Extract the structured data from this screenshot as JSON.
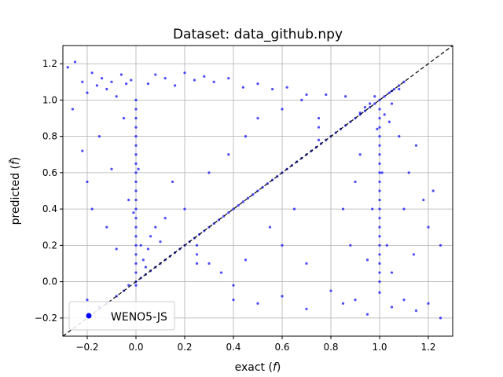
{
  "chart_data": {
    "type": "scatter",
    "title": "Dataset: data_github.npy",
    "xlabel": "exact (",
    "xlabel_symbol": "f",
    "xlabel_close": ")",
    "ylabel": "predicted (",
    "ylabel_symbol": "f̂",
    "ylabel_close": ")",
    "xlim": [
      -0.3,
      1.3
    ],
    "ylim": [
      -0.3,
      1.3
    ],
    "xticks": [
      -0.2,
      0.0,
      0.2,
      0.4,
      0.6,
      0.8,
      1.0,
      1.2
    ],
    "yticks": [
      -0.2,
      0.0,
      0.2,
      0.4,
      0.6,
      0.8,
      1.0,
      1.2
    ],
    "xtick_labels": [
      "−0.2",
      "0.0",
      "0.2",
      "0.4",
      "0.6",
      "0.8",
      "1.0",
      "1.2"
    ],
    "ytick_labels": [
      "−0.2",
      "0.0",
      "0.2",
      "0.4",
      "0.6",
      "0.8",
      "1.0",
      "1.2"
    ],
    "grid": true,
    "legend_position": "lower-left",
    "reference_line": {
      "style": "dashed",
      "color": "#000000",
      "slope": 1,
      "intercept": 0
    },
    "series": [
      {
        "name": "WENO5-JS",
        "color": "#0000ff",
        "marker": "dot",
        "points": [
          [
            -0.28,
            1.18
          ],
          [
            -0.25,
            1.21
          ],
          [
            -0.22,
            1.1
          ],
          [
            -0.2,
            1.04
          ],
          [
            -0.18,
            1.15
          ],
          [
            -0.16,
            1.08
          ],
          [
            -0.14,
            1.12
          ],
          [
            -0.12,
            1.06
          ],
          [
            -0.1,
            1.1
          ],
          [
            -0.08,
            1.02
          ],
          [
            -0.06,
            1.14
          ],
          [
            -0.04,
            1.09
          ],
          [
            -0.02,
            1.11
          ],
          [
            0.05,
            1.09
          ],
          [
            0.08,
            1.14
          ],
          [
            0.12,
            1.12
          ],
          [
            0.16,
            1.08
          ],
          [
            0.2,
            1.15
          ],
          [
            0.24,
            1.11
          ],
          [
            0.28,
            1.13
          ],
          [
            0.32,
            1.1
          ],
          [
            0.38,
            1.12
          ],
          [
            0.44,
            1.07
          ],
          [
            0.5,
            1.09
          ],
          [
            0.56,
            1.06
          ],
          [
            0.62,
            1.07
          ],
          [
            0.7,
            1.03
          ],
          [
            0.78,
            1.03
          ],
          [
            0.86,
            1.02
          ],
          [
            -0.26,
            0.95
          ],
          [
            -0.22,
            0.72
          ],
          [
            -0.2,
            0.55
          ],
          [
            -0.18,
            0.4
          ],
          [
            -0.15,
            0.8
          ],
          [
            -0.12,
            0.3
          ],
          [
            -0.1,
            0.62
          ],
          [
            -0.08,
            0.18
          ],
          [
            -0.05,
            0.9
          ],
          [
            -0.03,
            0.45
          ],
          [
            0.0,
            1.0
          ],
          [
            0.0,
            0.95
          ],
          [
            0.0,
            0.9
          ],
          [
            0.0,
            0.85
          ],
          [
            0.0,
            0.8
          ],
          [
            0.0,
            0.75
          ],
          [
            0.0,
            0.7
          ],
          [
            0.0,
            0.65
          ],
          [
            0.0,
            0.6
          ],
          [
            0.0,
            0.55
          ],
          [
            0.0,
            0.5
          ],
          [
            0.0,
            0.45
          ],
          [
            0.0,
            0.4
          ],
          [
            0.0,
            0.35
          ],
          [
            0.0,
            0.3
          ],
          [
            0.0,
            0.25
          ],
          [
            0.0,
            0.2
          ],
          [
            0.0,
            0.15
          ],
          [
            0.0,
            0.1
          ],
          [
            0.0,
            0.05
          ],
          [
            0.0,
            0.0
          ],
          [
            0.01,
            0.62
          ],
          [
            -0.01,
            0.38
          ],
          [
            0.02,
            0.2
          ],
          [
            0.03,
            0.12
          ],
          [
            0.04,
            0.08
          ],
          [
            0.05,
            0.18
          ],
          [
            0.06,
            0.25
          ],
          [
            0.08,
            0.3
          ],
          [
            0.1,
            0.22
          ],
          [
            0.12,
            0.35
          ],
          [
            -0.2,
            -0.1
          ],
          [
            -0.15,
            -0.14
          ],
          [
            -0.12,
            -0.12
          ],
          [
            -0.1,
            -0.18
          ],
          [
            -0.08,
            -0.08
          ],
          [
            -0.05,
            -0.05
          ],
          [
            -0.03,
            -0.02
          ],
          [
            0.0,
            -0.02
          ],
          [
            0.02,
            0.02
          ],
          [
            0.04,
            0.04
          ],
          [
            0.06,
            0.06
          ],
          [
            0.08,
            0.08
          ],
          [
            0.1,
            0.1
          ],
          [
            0.12,
            0.12
          ],
          [
            0.14,
            0.14
          ],
          [
            0.16,
            0.16
          ],
          [
            0.18,
            0.18
          ],
          [
            0.2,
            0.2
          ],
          [
            0.22,
            0.22
          ],
          [
            0.24,
            0.24
          ],
          [
            0.26,
            0.26
          ],
          [
            0.28,
            0.28
          ],
          [
            0.3,
            0.3
          ],
          [
            0.32,
            0.32
          ],
          [
            0.34,
            0.34
          ],
          [
            0.36,
            0.36
          ],
          [
            0.38,
            0.38
          ],
          [
            0.4,
            0.4
          ],
          [
            0.42,
            0.42
          ],
          [
            0.44,
            0.44
          ],
          [
            0.46,
            0.46
          ],
          [
            0.48,
            0.48
          ],
          [
            0.5,
            0.5
          ],
          [
            0.52,
            0.52
          ],
          [
            0.54,
            0.54
          ],
          [
            0.56,
            0.56
          ],
          [
            0.58,
            0.58
          ],
          [
            0.6,
            0.6
          ],
          [
            0.62,
            0.62
          ],
          [
            0.64,
            0.64
          ],
          [
            0.66,
            0.66
          ],
          [
            0.68,
            0.68
          ],
          [
            0.7,
            0.7
          ],
          [
            0.72,
            0.72
          ],
          [
            0.74,
            0.74
          ],
          [
            0.76,
            0.76
          ],
          [
            0.78,
            0.78
          ],
          [
            0.8,
            0.8
          ],
          [
            0.82,
            0.82
          ],
          [
            0.84,
            0.84
          ],
          [
            0.86,
            0.86
          ],
          [
            0.88,
            0.88
          ],
          [
            0.9,
            0.9
          ],
          [
            0.92,
            0.92
          ],
          [
            0.94,
            0.94
          ],
          [
            0.96,
            0.96
          ],
          [
            0.98,
            0.98
          ],
          [
            1.0,
            1.0
          ],
          [
            1.02,
            1.02
          ],
          [
            1.04,
            1.04
          ],
          [
            1.06,
            1.06
          ],
          [
            1.08,
            1.08
          ],
          [
            1.1,
            1.1
          ],
          [
            0.25,
            0.15
          ],
          [
            0.25,
            0.2
          ],
          [
            0.25,
            0.1
          ],
          [
            0.75,
            0.78
          ],
          [
            0.75,
            0.85
          ],
          [
            0.75,
            0.9
          ],
          [
            0.3,
            0.1
          ],
          [
            0.35,
            0.05
          ],
          [
            0.4,
            -0.02
          ],
          [
            0.45,
            0.12
          ],
          [
            0.2,
            0.4
          ],
          [
            0.15,
            0.55
          ],
          [
            0.3,
            0.6
          ],
          [
            0.38,
            0.7
          ],
          [
            0.45,
            0.8
          ],
          [
            0.55,
            0.3
          ],
          [
            0.6,
            0.2
          ],
          [
            0.65,
            0.4
          ],
          [
            0.7,
            0.1
          ],
          [
            0.5,
            0.9
          ],
          [
            0.6,
            0.95
          ],
          [
            0.68,
            1.0
          ],
          [
            0.85,
            0.4
          ],
          [
            0.88,
            0.2
          ],
          [
            0.9,
            0.55
          ],
          [
            0.92,
            0.7
          ],
          [
            1.0,
            0.95
          ],
          [
            1.0,
            0.9
          ],
          [
            1.0,
            0.85
          ],
          [
            1.0,
            0.8
          ],
          [
            1.0,
            0.75
          ],
          [
            1.0,
            0.7
          ],
          [
            1.0,
            0.65
          ],
          [
            1.0,
            0.6
          ],
          [
            1.0,
            0.55
          ],
          [
            1.0,
            0.5
          ],
          [
            1.0,
            0.45
          ],
          [
            1.0,
            0.4
          ],
          [
            1.0,
            0.35
          ],
          [
            1.0,
            0.3
          ],
          [
            1.0,
            0.25
          ],
          [
            1.0,
            0.2
          ],
          [
            1.0,
            0.15
          ],
          [
            1.0,
            0.1
          ],
          [
            1.0,
            0.05
          ],
          [
            1.0,
            0.0
          ],
          [
            0.98,
            1.02
          ],
          [
            0.96,
            0.98
          ],
          [
            1.02,
            0.92
          ],
          [
            1.04,
            0.88
          ],
          [
            0.99,
            0.84
          ],
          [
            1.01,
            0.6
          ],
          [
            0.97,
            0.4
          ],
          [
            1.03,
            0.2
          ],
          [
            1.05,
            0.05
          ],
          [
            0.95,
            0.12
          ],
          [
            1.05,
            0.98
          ],
          [
            1.08,
            0.8
          ],
          [
            1.12,
            0.6
          ],
          [
            1.15,
            0.75
          ],
          [
            1.18,
            0.45
          ],
          [
            1.2,
            0.3
          ],
          [
            1.22,
            0.5
          ],
          [
            1.25,
            0.2
          ],
          [
            1.1,
            0.4
          ],
          [
            1.14,
            0.15
          ],
          [
            0.4,
            -0.1
          ],
          [
            0.5,
            -0.12
          ],
          [
            0.6,
            -0.08
          ],
          [
            0.7,
            -0.15
          ],
          [
            0.8,
            -0.05
          ],
          [
            0.85,
            -0.12
          ],
          [
            0.9,
            -0.1
          ],
          [
            0.95,
            -0.18
          ],
          [
            1.0,
            -0.06
          ],
          [
            1.05,
            -0.14
          ],
          [
            1.1,
            -0.1
          ],
          [
            1.15,
            -0.16
          ],
          [
            1.2,
            -0.12
          ],
          [
            1.25,
            -0.2
          ],
          [
            1.05,
            1.05
          ],
          [
            1.08,
            1.06
          ],
          [
            0.94,
            0.96
          ],
          [
            0.92,
            0.93
          ]
        ]
      }
    ]
  }
}
